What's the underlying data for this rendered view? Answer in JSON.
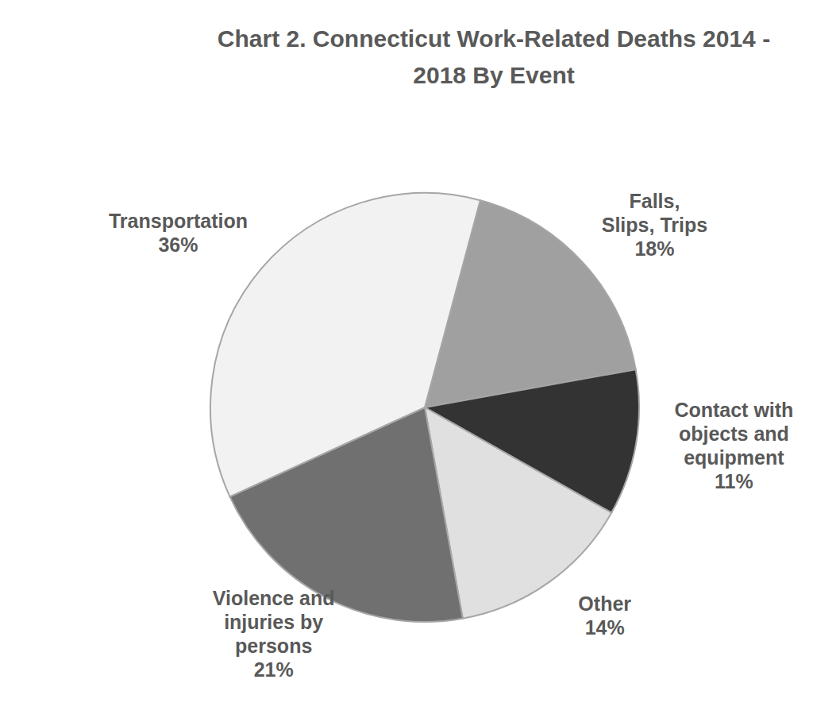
{
  "chart_data": {
    "type": "pie",
    "title": "Chart 2. Connecticut Work-Related Deaths 2014 - 2018 By Event",
    "categories": [
      "Falls, Slips, Trips",
      "Contact with objects and equipment",
      "Other",
      "Violence and injuries by persons",
      "Transportation"
    ],
    "values": [
      18,
      11,
      14,
      21,
      36
    ],
    "value_labels": [
      "18%",
      "11%",
      "14%",
      "21%",
      "36%"
    ],
    "colors": [
      "#a0a0a0",
      "#333333",
      "#e0e0e0",
      "#707070",
      "#f2f2f2"
    ],
    "data_labels": true
  }
}
